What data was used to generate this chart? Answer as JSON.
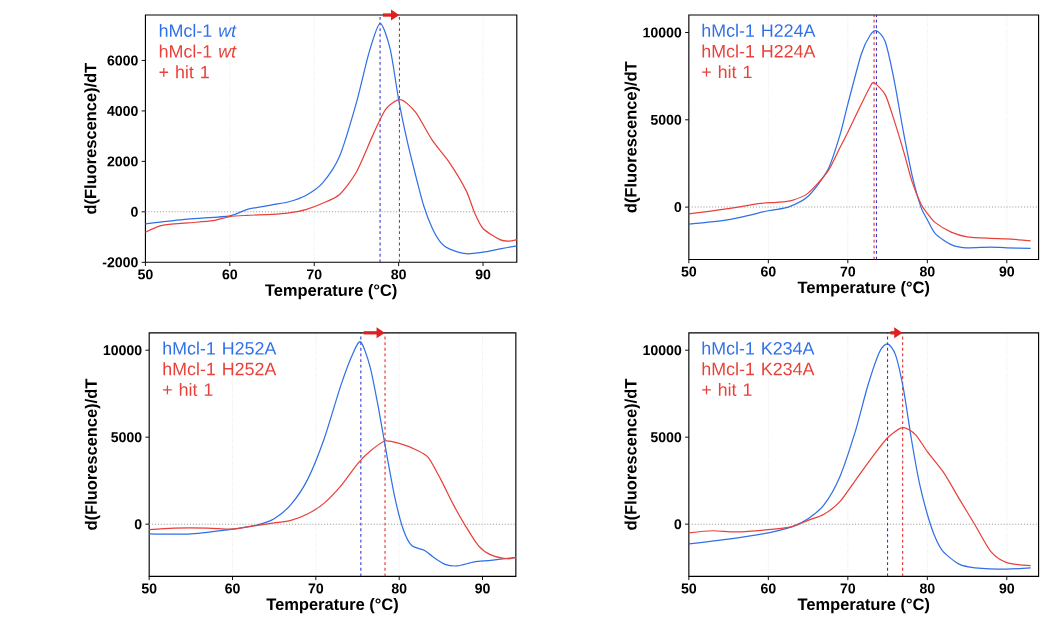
{
  "chart_data": [
    {
      "type": "line",
      "xlabel": "Temperature (°C)",
      "ylabel": "d(Fluorescence)/dT",
      "xlim": [
        50,
        94
      ],
      "xticks": [
        50,
        60,
        70,
        80,
        90
      ],
      "ylim": [
        -2000,
        7800
      ],
      "yticks": [
        -2000,
        0,
        2000,
        4000,
        6000
      ],
      "grid": "x",
      "legend": "top left",
      "series": [
        {
          "name": "hMcl-1 *wt*",
          "color": "#2f6fe8",
          "x": [
            50,
            55,
            60,
            62,
            65,
            67,
            69,
            71,
            73,
            75,
            76.5,
            77.8,
            79,
            80,
            81,
            82,
            83,
            84,
            85,
            86,
            88,
            90,
            92,
            94
          ],
          "values": [
            -475,
            -290,
            -160,
            90,
            275,
            400,
            650,
            1150,
            2200,
            4330,
            6320,
            7470,
            6450,
            4450,
            2830,
            1460,
            210,
            -660,
            -1220,
            -1470,
            -1660,
            -1600,
            -1470,
            -1350
          ]
        },
        {
          "name": "hMcl-1 *wt* + hit 1",
          "color": "#e8403a",
          "x": [
            50,
            52,
            55,
            58,
            60,
            62,
            65,
            67,
            69,
            71,
            73,
            75,
            77,
            78.5,
            80.2,
            82,
            84,
            86,
            88,
            89,
            90,
            92,
            93,
            94
          ],
          "values": [
            -810,
            -540,
            -440,
            -350,
            -190,
            -140,
            -100,
            -40,
            90,
            340,
            690,
            1580,
            3080,
            4080,
            4450,
            3950,
            2830,
            1960,
            840,
            -40,
            -660,
            -1100,
            -1160,
            -1100
          ]
        }
      ],
      "ref_lines": [
        {
          "axis": "y",
          "value": 0,
          "color": "#999999",
          "line_style": "dotted"
        },
        {
          "axis": "x",
          "value": 77.8,
          "color": "#2a2ad0",
          "line_style": "dashed"
        },
        {
          "axis": "x",
          "value": 80.1,
          "color": "#e02020",
          "line_style": "dashed"
        }
      ]
    },
    {
      "type": "line",
      "xlabel": "Temperature (°C)",
      "ylabel": "d(Fluorescence)/dT",
      "xlim": [
        50,
        94
      ],
      "xticks": [
        50,
        60,
        70,
        80,
        90
      ],
      "ylim": [
        -3000,
        11000
      ],
      "yticks": [
        0,
        5000,
        10000
      ],
      "grid": "x",
      "legend": "top left",
      "series": [
        {
          "name": "hMcl-1 H224A",
          "color": "#2f6fe8",
          "x": [
            50,
            55,
            60,
            62.5,
            65,
            67.5,
            69,
            70,
            71.7,
            72.8,
            73.6,
            74.7,
            75.8,
            77,
            78.1,
            79.2,
            80,
            81,
            83,
            84.8,
            87.9,
            90,
            93
          ],
          "values": [
            -980,
            -720,
            -210,
            0,
            620,
            2150,
            4110,
            5900,
            8770,
            9840,
            10100,
            9480,
            7330,
            4290,
            1790,
            0,
            -720,
            -1520,
            -2150,
            -2330,
            -2290,
            -2330,
            -2360
          ]
        },
        {
          "name": "hMcl-1 H224A + hit 1",
          "color": "#e8403a",
          "x": [
            50,
            55,
            59,
            61,
            63,
            65,
            67.5,
            69,
            70,
            71.7,
            72.8,
            73.3,
            74.7,
            75.8,
            77,
            78.1,
            79.2,
            80,
            81,
            83,
            85,
            88,
            90,
            93
          ],
          "values": [
            -390,
            -90,
            210,
            270,
            390,
            800,
            2060,
            3400,
            4290,
            5900,
            6890,
            7120,
            6440,
            5010,
            3220,
            1430,
            180,
            -360,
            -890,
            -1430,
            -1700,
            -1790,
            -1820,
            -1930
          ]
        }
      ],
      "ref_lines": [
        {
          "axis": "y",
          "value": 0,
          "color": "#999999",
          "line_style": "dotted"
        },
        {
          "axis": "x",
          "value": 73.6,
          "color": "#2a2ad0",
          "line_style": "dashed"
        },
        {
          "axis": "x",
          "value": 73.3,
          "color": "#e02020",
          "line_style": "dashed"
        }
      ]
    },
    {
      "type": "line",
      "xlabel": "Temperature (°C)",
      "ylabel": "d(Fluorescence)/dT",
      "xlim": [
        50,
        94
      ],
      "xticks": [
        50,
        60,
        70,
        80,
        90
      ],
      "ylim": [
        -3000,
        11000
      ],
      "yticks": [
        0,
        5000,
        10000
      ],
      "grid": "x",
      "legend": "top left",
      "series": [
        {
          "name": "hMcl-1 H252A",
          "color": "#2f6fe8",
          "x": [
            50,
            55,
            60,
            63,
            65,
            67,
            69,
            71,
            73,
            74.5,
            75.4,
            76.5,
            77.5,
            78.5,
            79.5,
            80.5,
            81.5,
            83,
            84,
            85.5,
            87,
            89,
            91,
            94
          ],
          "values": [
            -560,
            -560,
            -290,
            -40,
            310,
            1120,
            2560,
            4910,
            7980,
            9870,
            10470,
            9060,
            6710,
            4010,
            1480,
            -320,
            -1230,
            -1500,
            -1860,
            -2310,
            -2400,
            -2170,
            -2080,
            -1910
          ]
        },
        {
          "name": "hMcl-1 H252A + hit 1",
          "color": "#e8403a",
          "x": [
            50,
            53,
            57,
            60,
            63,
            65,
            67,
            69,
            71,
            73,
            75,
            76.5,
            78.3,
            80,
            82,
            83.5,
            85,
            86.5,
            88,
            89.5,
            91,
            93,
            94
          ],
          "values": [
            -320,
            -230,
            -230,
            -290,
            -70,
            70,
            220,
            580,
            1210,
            2200,
            3470,
            4190,
            4780,
            4640,
            4280,
            3830,
            2560,
            1120,
            -140,
            -1230,
            -1770,
            -1990,
            -1910
          ]
        }
      ],
      "ref_lines": [
        {
          "axis": "y",
          "value": 0,
          "color": "#999999",
          "line_style": "dotted"
        },
        {
          "axis": "x",
          "value": 75.4,
          "color": "#2a2ad0",
          "line_style": "dashed"
        },
        {
          "axis": "x",
          "value": 78.3,
          "color": "#e02020",
          "line_style": "dashed"
        }
      ]
    },
    {
      "type": "line",
      "xlabel": "Temperature (°C)",
      "ylabel": "d(Fluorescence)/dT",
      "xlim": [
        50,
        94
      ],
      "xticks": [
        50,
        60,
        70,
        80,
        90
      ],
      "ylim": [
        -3000,
        11000
      ],
      "yticks": [
        0,
        5000,
        10000
      ],
      "grid": "x",
      "legend": "top left",
      "series": [
        {
          "name": "hMcl-1 K234A",
          "color": "#2f6fe8",
          "x": [
            50,
            55,
            60,
            63,
            65,
            67,
            69,
            71,
            72.5,
            74,
            75,
            76,
            77,
            78,
            79,
            80,
            81,
            82,
            84,
            86,
            90,
            93
          ],
          "values": [
            -1130,
            -860,
            -500,
            -140,
            310,
            1110,
            2730,
            5420,
            7940,
            9910,
            10360,
            9730,
            7760,
            4880,
            2370,
            570,
            -770,
            -1580,
            -2300,
            -2510,
            -2590,
            -2510
          ]
        },
        {
          "name": "hMcl-1 K234A + hit 1",
          "color": "#e8403a",
          "x": [
            50,
            53,
            56,
            60,
            63,
            65,
            67,
            69,
            71,
            73,
            75,
            76.9,
            78.5,
            80,
            82,
            84,
            86,
            88,
            90,
            93
          ],
          "values": [
            -500,
            -380,
            -450,
            -320,
            -140,
            220,
            570,
            1290,
            2550,
            3810,
            4970,
            5550,
            5150,
            4170,
            3000,
            1470,
            -50,
            -1580,
            -2210,
            -2390
          ]
        }
      ],
      "ref_lines": [
        {
          "axis": "y",
          "value": 0,
          "color": "#999999",
          "line_style": "dotted"
        },
        {
          "axis": "x",
          "value": 75,
          "color": "#2a2ad0",
          "line_style": "dashed"
        },
        {
          "axis": "x",
          "value": 76.9,
          "color": "#e02020",
          "line_style": "dashed"
        }
      ]
    }
  ]
}
